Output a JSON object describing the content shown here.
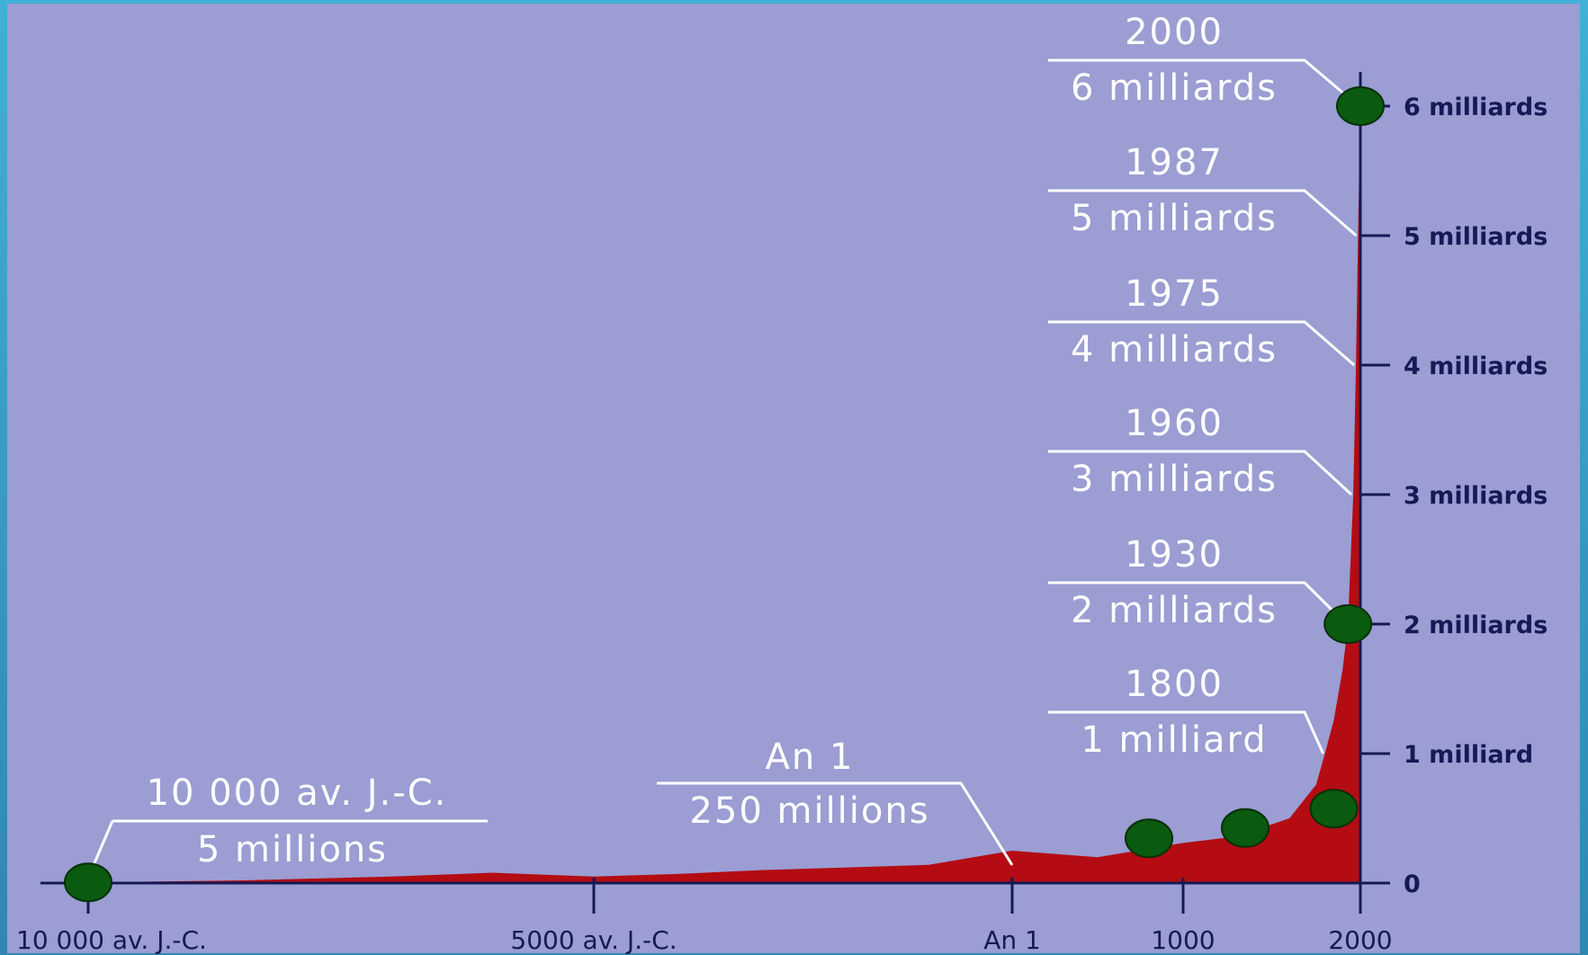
{
  "colors": {
    "plot_background": "#9b9dd3",
    "area_fill": "#b40c12",
    "marker": "#0a5a10",
    "annotation": "#ffffff",
    "axis": "#141a55"
  },
  "chart_data": {
    "type": "area",
    "title": "",
    "xlabel": "",
    "ylabel": "",
    "ylim": [
      0,
      6
    ],
    "x_ticks": [
      {
        "label": "10 000 av. J.-C.",
        "year": -10000
      },
      {
        "label": "5000 av. J.-C.",
        "year": -5000
      },
      {
        "label": "An 1",
        "year": 1
      },
      {
        "label": "1000",
        "year": 1000
      },
      {
        "label": "2000",
        "year": 2000
      }
    ],
    "y_ticks": [
      {
        "label": "0",
        "value": 0
      },
      {
        "label": "1 milliard",
        "value": 1
      },
      {
        "label": "2 milliards",
        "value": 2
      },
      {
        "label": "3 milliards",
        "value": 3
      },
      {
        "label": "4 milliards",
        "value": 4
      },
      {
        "label": "5 milliards",
        "value": 5
      },
      {
        "label": "6 milliards",
        "value": 6
      }
    ],
    "series": [
      {
        "x": [
          -10000,
          -8500,
          -7000,
          -6000,
          -5000,
          -4000,
          -3000,
          -2000,
          -1000,
          1,
          500,
          1000,
          1300,
          1600,
          1750,
          1800,
          1850,
          1900,
          1930,
          1960,
          1975,
          1987,
          2000
        ],
        "y": [
          0.005,
          0.02,
          0.05,
          0.08,
          0.05,
          0.07,
          0.1,
          0.12,
          0.14,
          0.25,
          0.2,
          0.31,
          0.36,
          0.5,
          0.76,
          1.0,
          1.26,
          1.65,
          2.0,
          3.0,
          4.0,
          5.0,
          6.0
        ]
      }
    ],
    "markers": [
      {
        "year": -10000,
        "value": 0.005
      },
      {
        "year": 800,
        "value": 0.22
      },
      {
        "year": 1350,
        "value": 0.3
      },
      {
        "year": 1850,
        "value": 0.45
      },
      {
        "year": 1930,
        "value": 2.0
      },
      {
        "year": 2000,
        "value": 6.0
      }
    ],
    "annotations": [
      {
        "year_label": "2000",
        "value_label": "6 milliards",
        "year": 2000,
        "value": 6
      },
      {
        "year_label": "1987",
        "value_label": "5 milliards",
        "year": 1987,
        "value": 5
      },
      {
        "year_label": "1975",
        "value_label": "4 milliards",
        "year": 1975,
        "value": 4
      },
      {
        "year_label": "1960",
        "value_label": "3 milliards",
        "year": 1960,
        "value": 3
      },
      {
        "year_label": "1930",
        "value_label": "2 milliards",
        "year": 1930,
        "value": 2
      },
      {
        "year_label": "1800",
        "value_label": "1 milliard",
        "year": 1800,
        "value": 1
      },
      {
        "year_label": "An 1",
        "value_label": "250 millions",
        "year": 1,
        "value": 0.25
      },
      {
        "year_label": "10 000 av. J.-C.",
        "value_label": "5 millions",
        "year": -10000,
        "value": 0.005
      }
    ]
  }
}
